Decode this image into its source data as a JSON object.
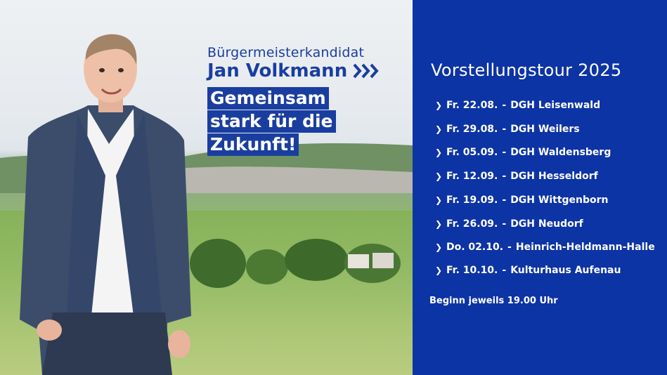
{
  "header": {
    "subtitle": "Bürgermeisterkandidat",
    "name": "Jan Volkmann",
    "slogan": [
      "Gemeinsam",
      "stark für die",
      "Zukunft!"
    ]
  },
  "panel": {
    "title": "Vorstellungstour 2025",
    "events": [
      {
        "date": "Fr. 22.08.",
        "venue": "DGH Leisenwald"
      },
      {
        "date": "Fr. 29.08.",
        "venue": "DGH Weilers"
      },
      {
        "date": "Fr. 05.09.",
        "venue": "DGH Waldensberg"
      },
      {
        "date": "Fr. 12.09. ",
        "venue": "DGH Hesseldorf"
      },
      {
        "date": "Fr. 19.09. ",
        "venue": "DGH Wittgenborn"
      },
      {
        "date": "Fr. 26.09.",
        "venue": "DGH Neudorf"
      },
      {
        "date": "Do. 02.10.",
        "venue": "Heinrich-Heldmann-Halle"
      },
      {
        "date": "Fr. 10.10. ",
        "venue": "Kulturhaus Aufenau"
      }
    ],
    "separator": "-",
    "footer": "Beginn jeweils 19.00 Uhr"
  },
  "colors": {
    "brand_blue": "#0d34a5",
    "text_blue": "#1a3ea0"
  }
}
